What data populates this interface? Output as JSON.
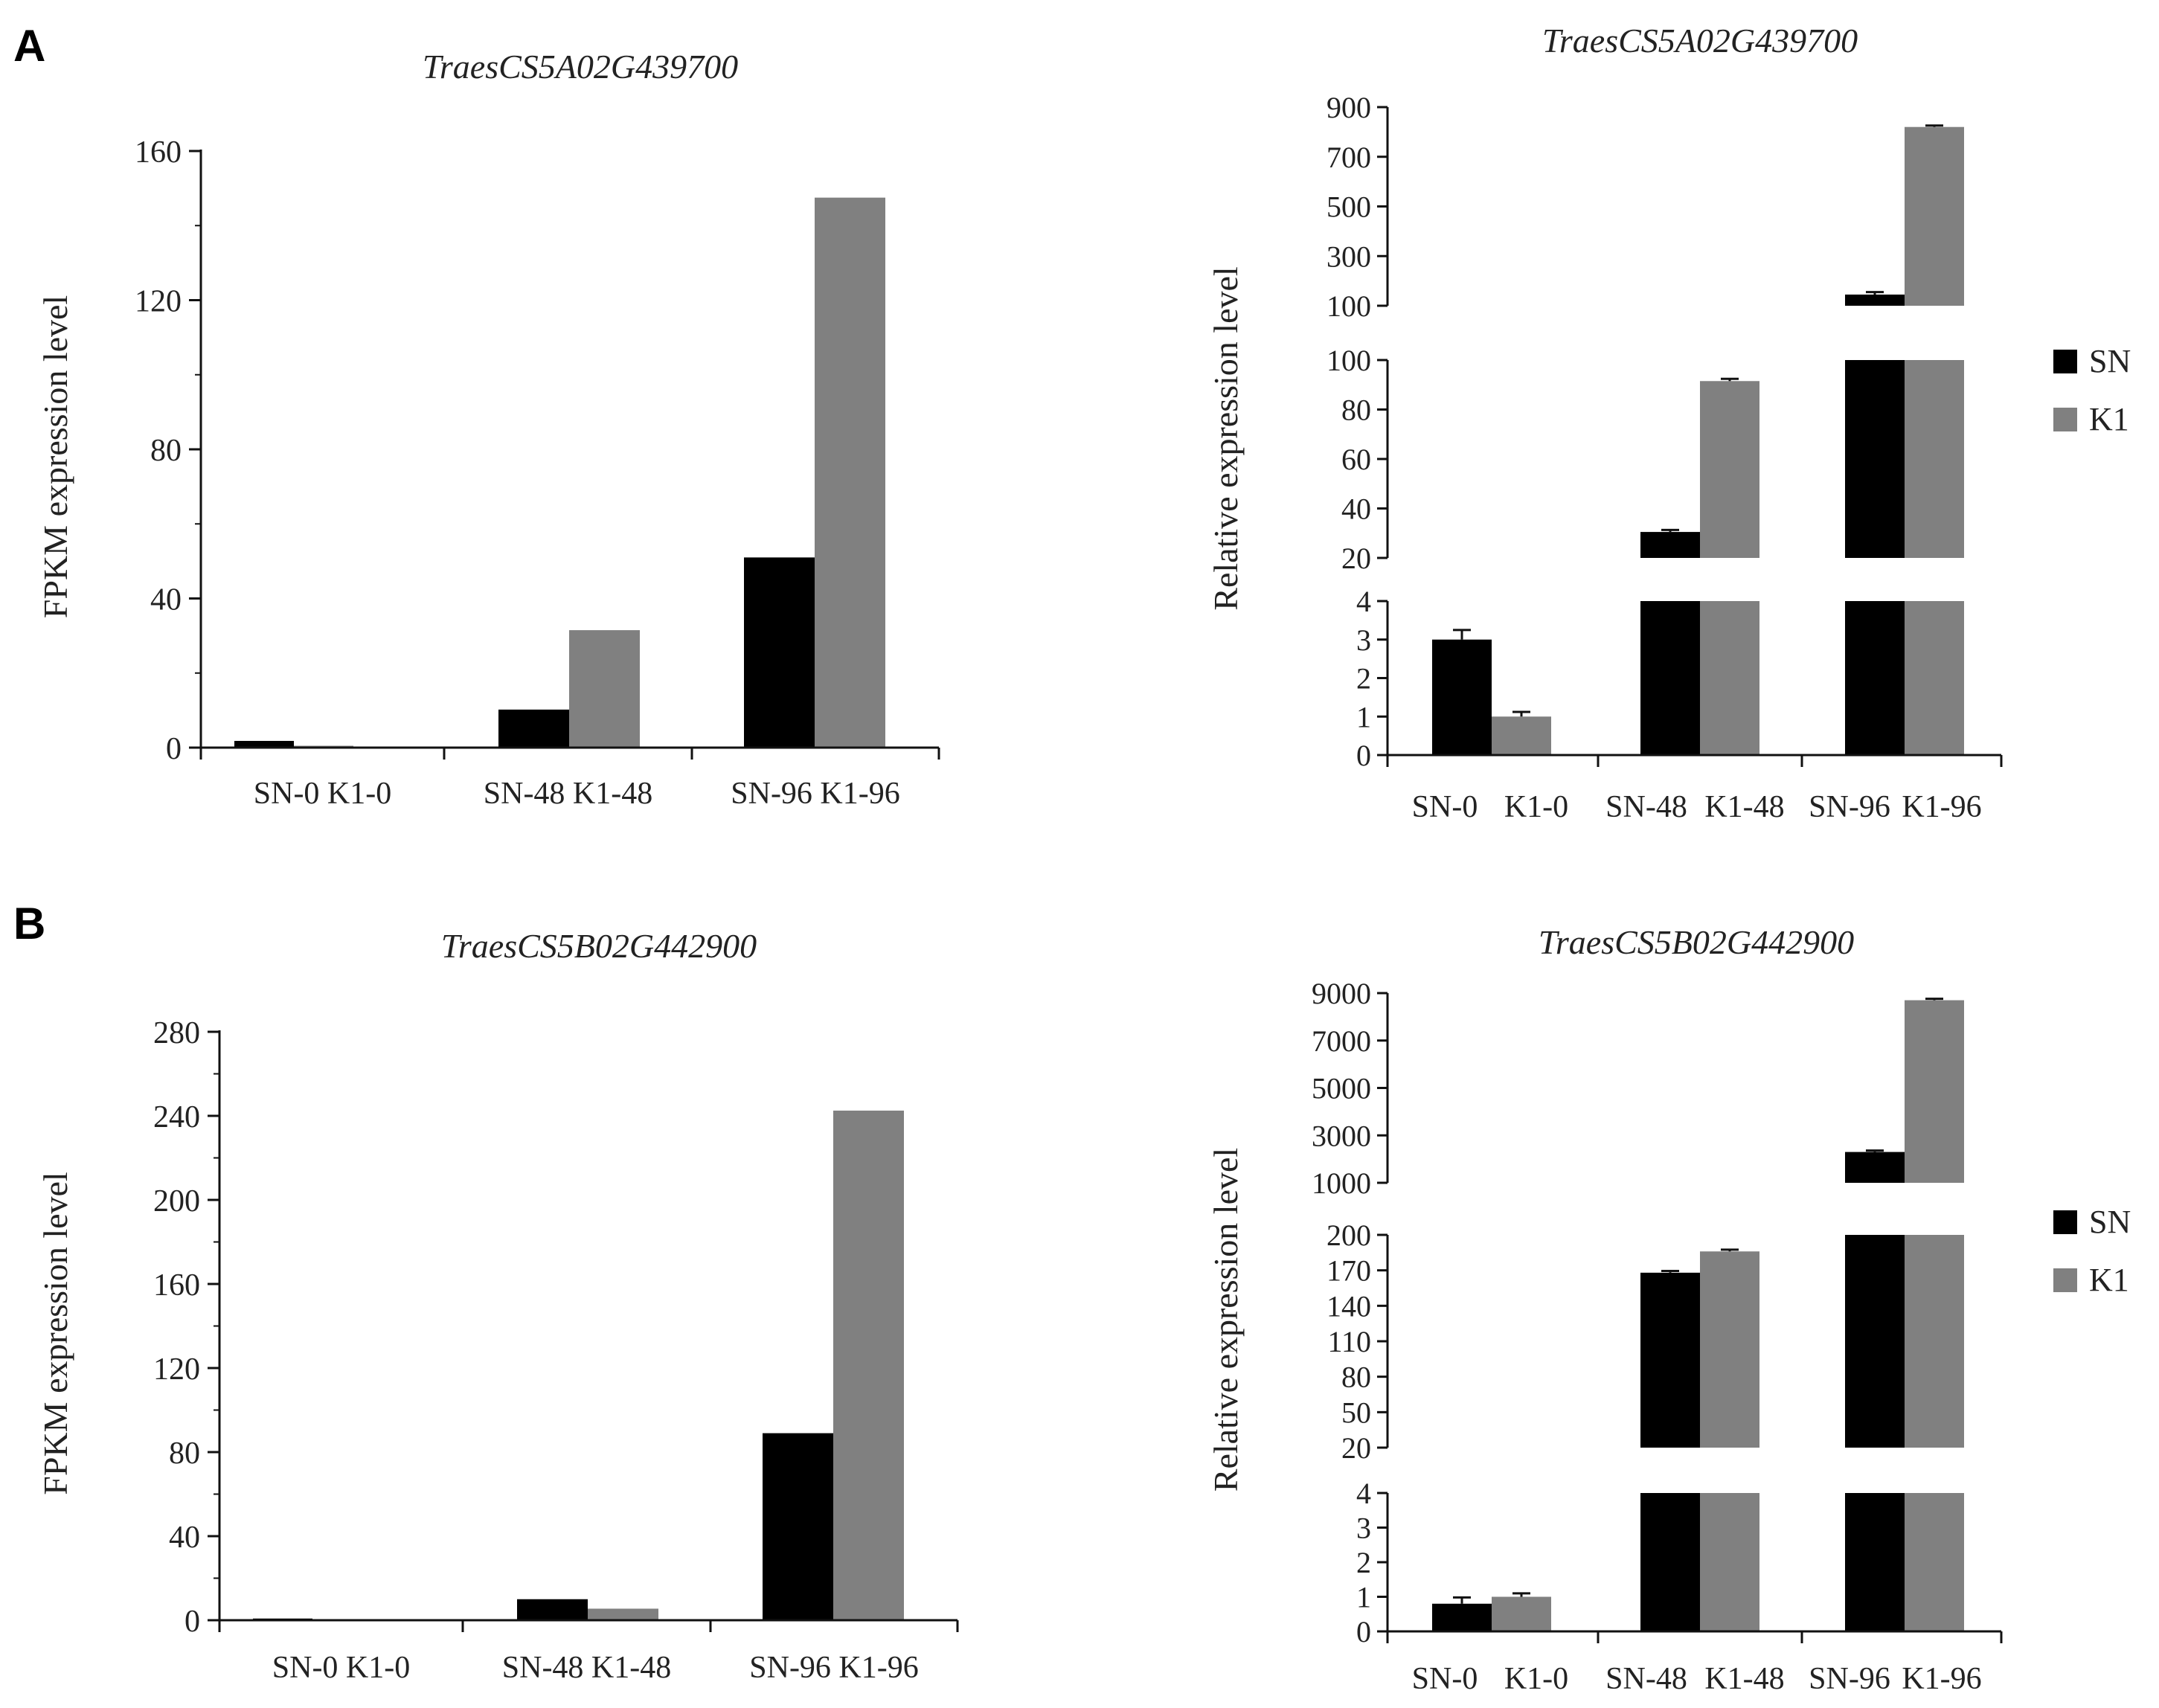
{
  "panels": [
    {
      "label": "A",
      "fpkm": {
        "type": "bar",
        "title": "TraesCS5A02G439700",
        "ylabel": "FPKM expression level",
        "ylim": [
          0,
          160
        ],
        "ticks": [
          0,
          40,
          80,
          120,
          160
        ],
        "groups": [
          "SN-0 K1-0",
          "SN-48 K1-48",
          "SN-96 K1-96"
        ],
        "series": [
          {
            "name": "SN",
            "color": "#000000",
            "values": [
              1.8,
              10.2,
              51
            ]
          },
          {
            "name": "K1",
            "color": "#808080",
            "values": [
              0.5,
              31.5,
              147.5
            ]
          }
        ]
      },
      "relative": {
        "type": "bar",
        "broken_axis": true,
        "title": "TraesCS5A02G439700",
        "ylabel": "Relative expression level",
        "categories": [
          "SN-0",
          "K1-0",
          "SN-48",
          "K1-48",
          "SN-96",
          "K1-96"
        ],
        "segments": [
          {
            "range": [
              0,
              4
            ],
            "ticks": [
              0,
              1,
              2,
              3,
              4
            ]
          },
          {
            "range": [
              20,
              100
            ],
            "ticks": [
              20,
              40,
              60,
              80,
              100
            ]
          },
          {
            "range": [
              100,
              900
            ],
            "ticks": [
              100,
              300,
              500,
              700,
              900
            ]
          }
        ],
        "series": [
          {
            "name": "SN",
            "color": "#000000",
            "values": [
              3.0,
              30.5,
              145
            ],
            "errors": [
              0.25,
              0.8,
              10
            ]
          },
          {
            "name": "K1",
            "color": "#808080",
            "values": [
              1.0,
              91.5,
              820
            ],
            "errors": [
              0.12,
              0.9,
              6
            ]
          }
        ],
        "legend": [
          "SN",
          "K1"
        ]
      }
    },
    {
      "label": "B",
      "fpkm": {
        "type": "bar",
        "title": "TraesCS5B02G442900",
        "ylabel": "FPKM expression level",
        "ylim": [
          0,
          280
        ],
        "ticks": [
          0,
          40,
          80,
          120,
          160,
          200,
          240,
          280
        ],
        "groups": [
          "SN-0 K1-0",
          "SN-48 K1-48",
          "SN-96 K1-96"
        ],
        "series": [
          {
            "name": "SN",
            "color": "#000000",
            "values": [
              0.8,
              10.0,
              89
            ]
          },
          {
            "name": "K1",
            "color": "#808080",
            "values": [
              0.5,
              5.5,
              242.5
            ]
          }
        ]
      },
      "relative": {
        "type": "bar",
        "broken_axis": true,
        "title": "TraesCS5B02G442900",
        "ylabel": "Relative expression level",
        "categories": [
          "SN-0",
          "K1-0",
          "SN-48",
          "K1-48",
          "SN-96",
          "K1-96"
        ],
        "segments": [
          {
            "range": [
              0,
              4
            ],
            "ticks": [
              0,
              1,
              2,
              3,
              4
            ]
          },
          {
            "range": [
              20,
              200
            ],
            "ticks": [
              20,
              50,
              80,
              110,
              140,
              170,
              200
            ]
          },
          {
            "range": [
              1000,
              9000
            ],
            "ticks": [
              1000,
              3000,
              5000,
              7000,
              9000
            ]
          }
        ],
        "series": [
          {
            "name": "SN",
            "color": "#000000",
            "values": [
              0.8,
              168,
              2300
            ],
            "errors": [
              0.18,
              1.5,
              60
            ]
          },
          {
            "name": "K1",
            "color": "#808080",
            "values": [
              1.0,
              186,
              8700
            ],
            "errors": [
              0.1,
              1.5,
              60
            ]
          }
        ],
        "legend": [
          "SN",
          "K1"
        ]
      }
    }
  ]
}
